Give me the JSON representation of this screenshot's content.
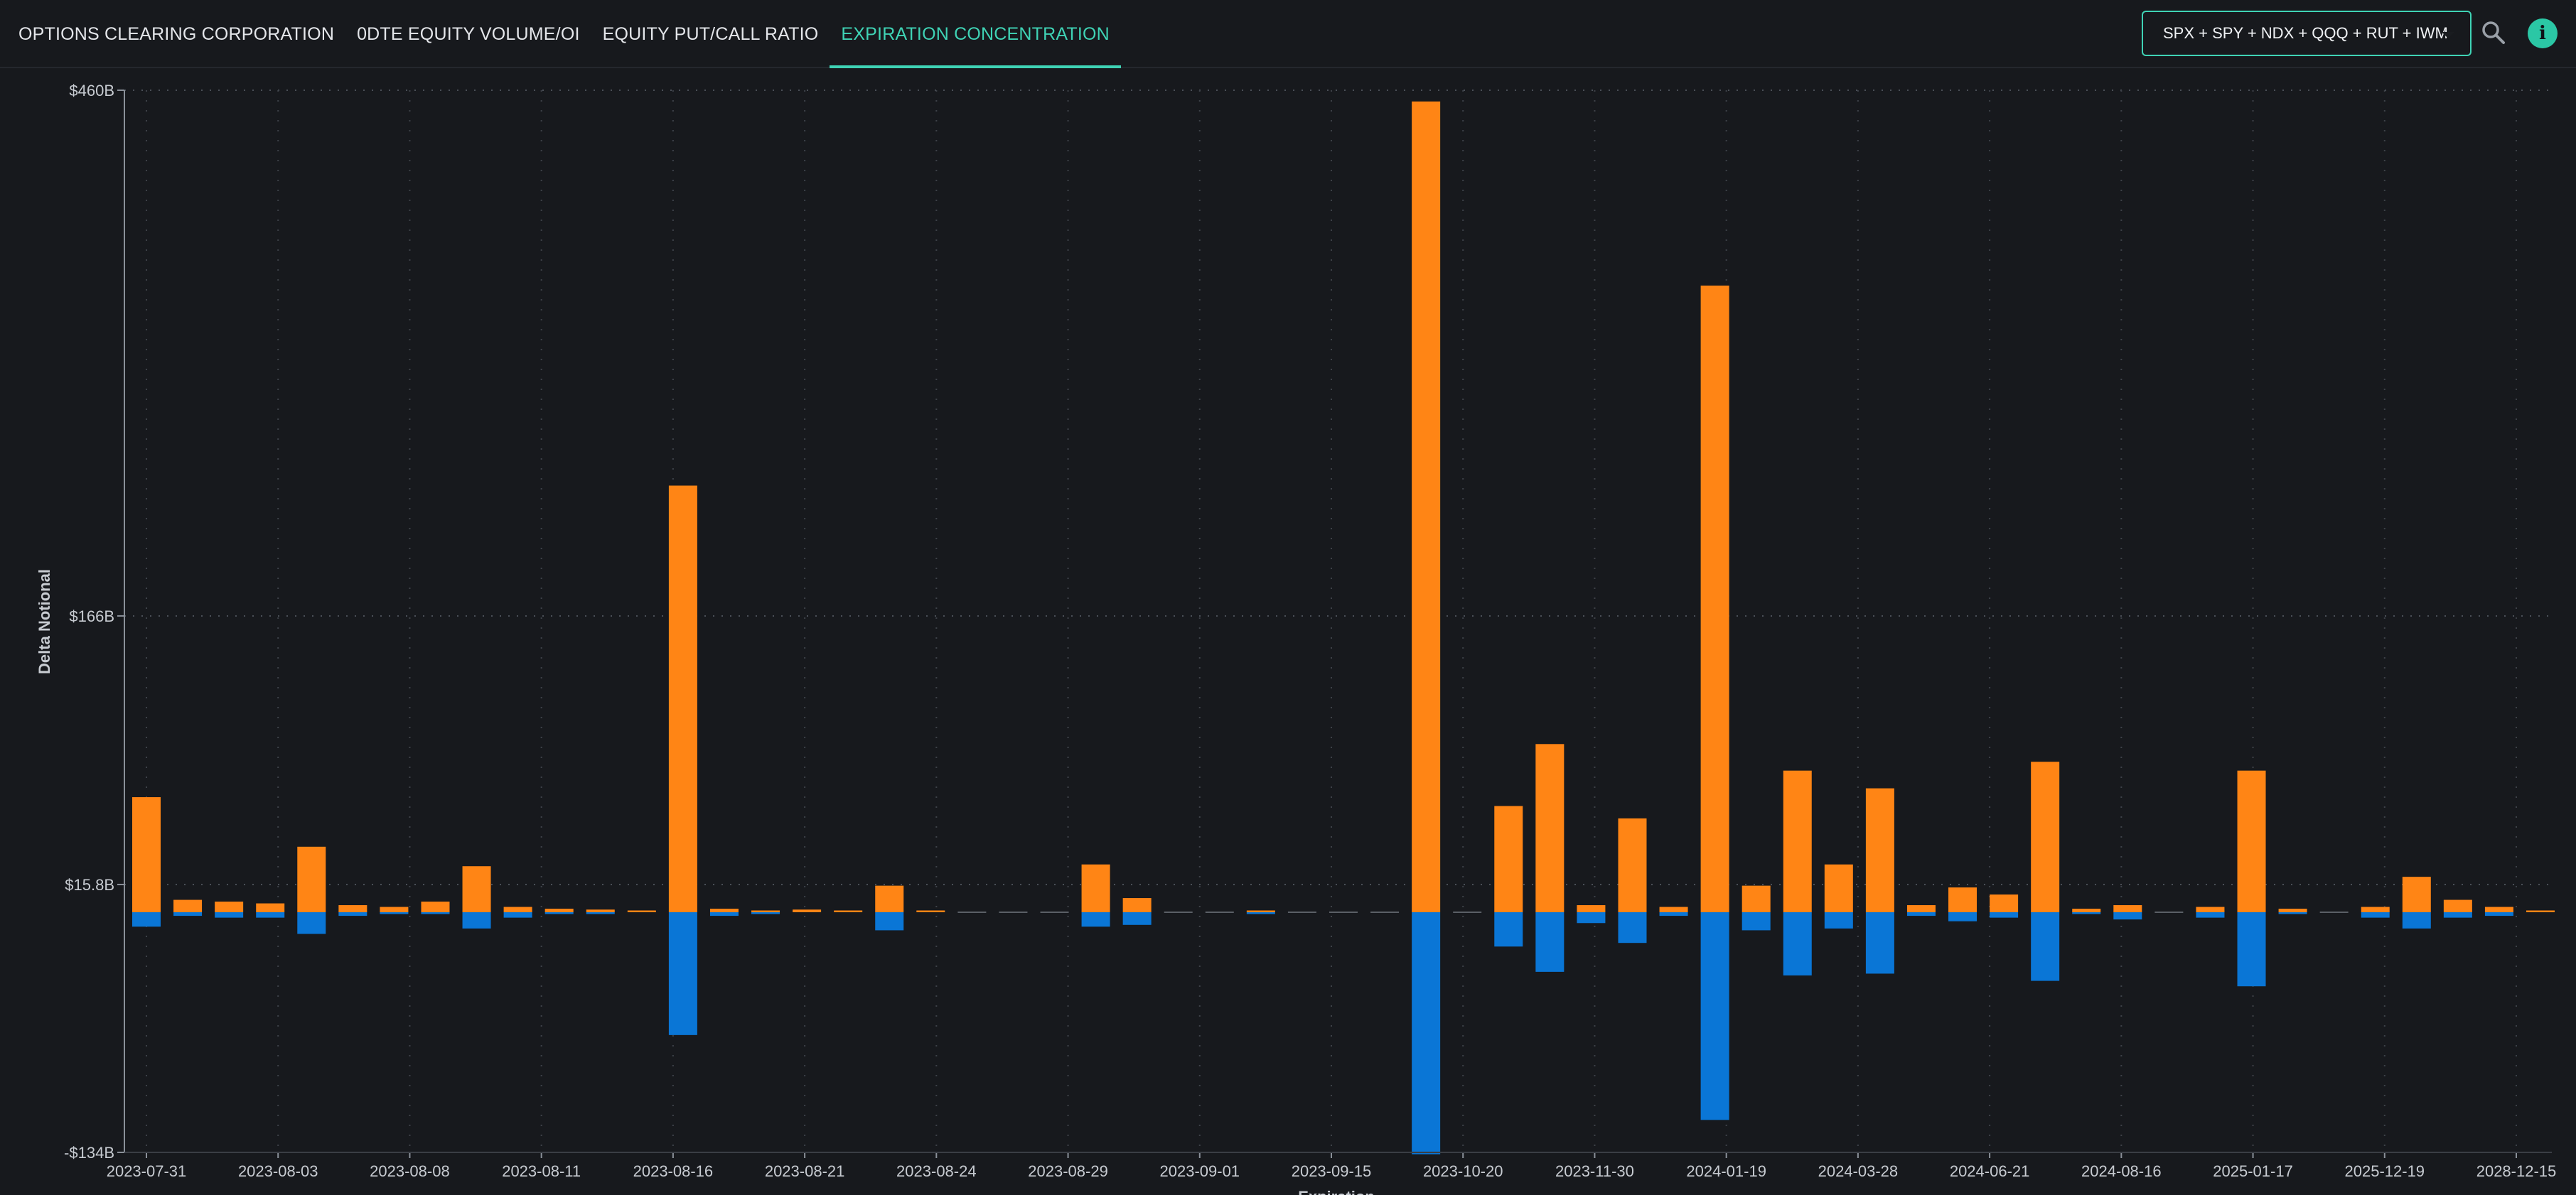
{
  "nav": {
    "tabs": [
      {
        "label": "OPTIONS CLEARING CORPORATION",
        "active": false
      },
      {
        "label": "0DTE EQUITY VOLUME/OI",
        "active": false
      },
      {
        "label": "EQUITY PUT/CALL RATIO",
        "active": false
      },
      {
        "label": "EXPIRATION CONCENTRATION",
        "active": true
      }
    ]
  },
  "selector": {
    "value": "SPX + SPY + NDX + QQQ + RUT + IWM"
  },
  "icons": {
    "search": "search-icon",
    "info": "info-icon"
  },
  "colors": {
    "accent": "#3fd3b5",
    "calls": "#ff8515",
    "puts": "#0a76d6"
  },
  "chart_data": {
    "type": "bar",
    "stacked": true,
    "ylabel": "Delta Notional",
    "xlabel": "Expiration",
    "y_ticks": [
      -134,
      15.8,
      166,
      460
    ],
    "y_tick_labels": [
      "-$134B",
      "$15.8B",
      "$166B",
      "$460B"
    ],
    "ylim": [
      -134,
      460
    ],
    "x_tick_labels": [
      "2023-07-31",
      "2023-08-03",
      "2023-08-08",
      "2023-08-11",
      "2023-08-16",
      "2023-08-21",
      "2023-08-24",
      "2023-08-29",
      "2023-09-01",
      "2023-09-15",
      "2023-10-20",
      "2023-11-30",
      "2024-01-19",
      "2024-03-28",
      "2024-06-21",
      "2024-08-16",
      "2025-01-17",
      "2025-12-19",
      "2028-12-15"
    ],
    "grid": true,
    "series": [
      {
        "values": [
          65,
          7,
          6,
          5,
          37,
          4,
          3,
          6,
          26,
          3,
          2,
          1.5,
          1,
          241,
          2,
          1,
          1.5,
          1,
          15,
          1,
          0,
          0,
          0,
          27,
          8,
          0,
          0,
          1,
          0,
          0,
          0,
          458,
          0,
          60,
          95,
          4,
          53,
          3,
          354,
          15,
          80,
          27,
          70,
          4,
          14,
          10,
          85,
          2,
          4,
          0,
          3,
          80,
          2,
          0,
          3,
          20,
          7,
          3,
          1
        ]
      },
      {
        "values": [
          -8,
          -2,
          -3,
          -3,
          -12,
          -2,
          -1,
          -1,
          -9,
          -3,
          -1,
          -1,
          0,
          -68,
          -2,
          -1,
          0,
          0,
          -10,
          0,
          0,
          0,
          0,
          -8,
          -7,
          0,
          0,
          -1,
          0,
          0,
          0,
          -134,
          0,
          -19,
          -33,
          -6,
          -17,
          -2,
          -115,
          -10,
          -35,
          -9,
          -34,
          -2,
          -5,
          -3,
          -38,
          -1,
          -4,
          0,
          -3,
          -41,
          -1,
          0,
          -3,
          -9,
          -3,
          -2,
          0
        ]
      }
    ]
  }
}
